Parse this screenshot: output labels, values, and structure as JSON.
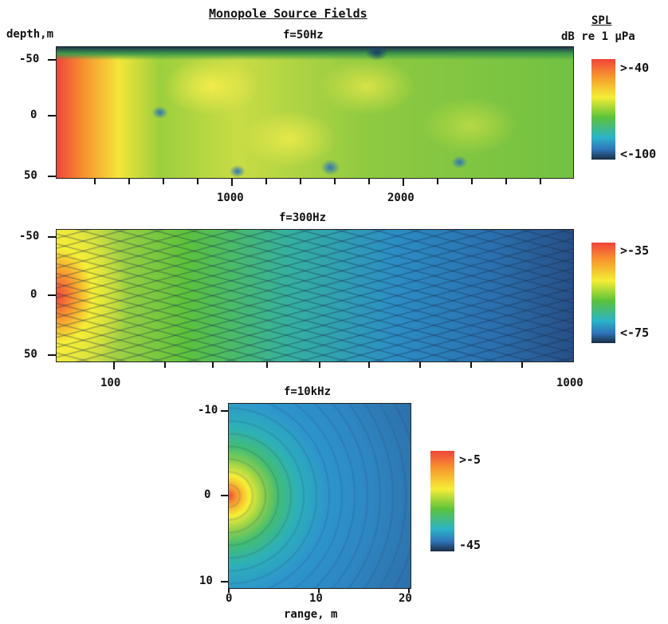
{
  "figure": {
    "title": "Monopole Source Fields",
    "ylabel": "depth,m",
    "colorbar_title": "SPL",
    "colorbar_units": "dB re 1 µPa",
    "xlabel": "range, m"
  },
  "panels": [
    {
      "id": "p50",
      "title": "f=50Hz",
      "y_ticks": [
        "-50",
        "0",
        "50"
      ],
      "x_ticks": [
        "1000",
        "2000"
      ],
      "colorbar": {
        "max_label": ">-40",
        "min_label": "<-100"
      }
    },
    {
      "id": "p300",
      "title": "f=300Hz",
      "y_ticks": [
        "-50",
        "0",
        "50"
      ],
      "x_ticks": [
        "100",
        "1000"
      ],
      "colorbar": {
        "max_label": ">-35",
        "min_label": "<-75"
      }
    },
    {
      "id": "p10k",
      "title": "f=10kHz",
      "y_ticks": [
        "-10",
        "0",
        "10"
      ],
      "x_ticks": [
        "0",
        "10",
        "20"
      ],
      "colorbar": {
        "max_label": ">-5",
        "min_label": "-45"
      }
    }
  ],
  "chart_data": [
    {
      "type": "heatmap",
      "title": "f=50Hz",
      "ylabel": "depth,m",
      "y_ticks": [
        -50,
        0,
        50
      ],
      "x_ticks": [
        1000,
        2000
      ],
      "ylim": [
        -50,
        50
      ],
      "color_scale": {
        "max": ">-40",
        "min": "<-100",
        "units": "dB re 1 µPa"
      }
    },
    {
      "type": "heatmap",
      "title": "f=300Hz",
      "x_scale": "log",
      "y_ticks": [
        -50,
        0,
        50
      ],
      "x_ticks": [
        100,
        1000
      ],
      "ylim": [
        -50,
        50
      ],
      "color_scale": {
        "max": ">-35",
        "min": "<-75",
        "units": "dB re 1 µPa"
      }
    },
    {
      "type": "heatmap",
      "title": "f=10kHz",
      "xlabel": "range, m",
      "y_ticks": [
        -10,
        0,
        10
      ],
      "x_ticks": [
        0,
        10,
        20
      ],
      "ylim": [
        -10,
        10
      ],
      "xlim": [
        0,
        20
      ],
      "color_scale": {
        "max": ">-5",
        "min": "-45",
        "units": "dB re 1 µPa"
      }
    }
  ],
  "colors": {
    "red": "#f0453a",
    "orange": "#f79a2e",
    "yellow": "#f5ee35",
    "green": "#5cc23b",
    "cyan": "#2bb3c8",
    "blue": "#2f74b8",
    "dark": "#1a2d44"
  }
}
